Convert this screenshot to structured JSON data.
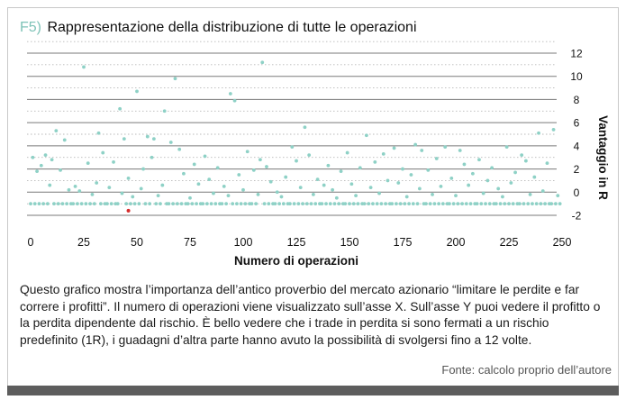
{
  "figure": {
    "label": "F5)",
    "title": "Rappresentazione della distribuzione di tutte le operazioni",
    "caption": "Questo grafico mostra l’importanza dell’antico proverbio del mercato azionario “limitare le perdite e far correre i profitti”. Il numero di operazioni viene visualizzato sull’asse X. Sull’asse Y puoi vedere il profitto o la perdita dipendente dal rischio. È bello vedere che i trade in perdita si sono fermati a un rischio predefinito (1R), i guadagni d’altra parte hanno avuto la possibilità di svolgersi fino a 12 volte.",
    "source": "Fonte: calcolo proprio dell’autore"
  },
  "colors": {
    "points": "#8ed1c6",
    "highlight": "#d62b2b",
    "grid": "#7a7a7a",
    "label": "#7fc3b8"
  },
  "chart_data": {
    "type": "scatter",
    "title": "Rappresentazione della distribuzione di tutte le operazioni",
    "xlabel": "Numero di operazioni",
    "ylabel": "Vantaggio in R",
    "xlim": [
      0,
      250
    ],
    "ylim": [
      -2,
      12
    ],
    "x_ticks": [
      "0",
      "25",
      "50",
      "75",
      "100",
      "125",
      "150",
      "175",
      "200",
      "225",
      "250"
    ],
    "y_ticks": [
      "-2",
      "0",
      "2",
      "4",
      "6",
      "8",
      "10",
      "12"
    ],
    "grid": "horizontal",
    "highlight_points": [
      {
        "x": 46,
        "y": -1.6
      }
    ],
    "points": [
      {
        "x": 0,
        "y": -1
      },
      {
        "x": 1,
        "y": 3
      },
      {
        "x": 2,
        "y": -1
      },
      {
        "x": 3,
        "y": 1.8
      },
      {
        "x": 4,
        "y": -1
      },
      {
        "x": 5,
        "y": 2.3
      },
      {
        "x": 6,
        "y": -1
      },
      {
        "x": 7,
        "y": 3.2
      },
      {
        "x": 8,
        "y": -1
      },
      {
        "x": 9,
        "y": 0.6
      },
      {
        "x": 10,
        "y": 2.8
      },
      {
        "x": 11,
        "y": -1
      },
      {
        "x": 12,
        "y": 5.3
      },
      {
        "x": 13,
        "y": -1
      },
      {
        "x": 14,
        "y": 1.9
      },
      {
        "x": 15,
        "y": -1
      },
      {
        "x": 16,
        "y": 4.5
      },
      {
        "x": 17,
        "y": -1
      },
      {
        "x": 18,
        "y": 0.2
      },
      {
        "x": 19,
        "y": -1
      },
      {
        "x": 20,
        "y": -1
      },
      {
        "x": 21,
        "y": 0.5
      },
      {
        "x": 22,
        "y": -1
      },
      {
        "x": 23,
        "y": 0.1
      },
      {
        "x": 24,
        "y": -1
      },
      {
        "x": 25,
        "y": 10.8
      },
      {
        "x": 26,
        "y": -1
      },
      {
        "x": 27,
        "y": 2.5
      },
      {
        "x": 28,
        "y": -1
      },
      {
        "x": 29,
        "y": -0.2
      },
      {
        "x": 30,
        "y": -1
      },
      {
        "x": 31,
        "y": 0.8
      },
      {
        "x": 32,
        "y": 5.1
      },
      {
        "x": 33,
        "y": -1
      },
      {
        "x": 34,
        "y": 3.4
      },
      {
        "x": 35,
        "y": -1
      },
      {
        "x": 36,
        "y": -1
      },
      {
        "x": 37,
        "y": 0.4
      },
      {
        "x": 38,
        "y": -1
      },
      {
        "x": 39,
        "y": 2.6
      },
      {
        "x": 40,
        "y": -1
      },
      {
        "x": 41,
        "y": -1
      },
      {
        "x": 42,
        "y": 7.2
      },
      {
        "x": 43,
        "y": -0.1
      },
      {
        "x": 44,
        "y": 4.6
      },
      {
        "x": 45,
        "y": -1
      },
      {
        "x": 46,
        "y": 1.2
      },
      {
        "x": 47,
        "y": -1
      },
      {
        "x": 48,
        "y": -0.4
      },
      {
        "x": 49,
        "y": -1
      },
      {
        "x": 50,
        "y": 8.7
      },
      {
        "x": 51,
        "y": -1
      },
      {
        "x": 52,
        "y": 0.3
      },
      {
        "x": 53,
        "y": 2
      },
      {
        "x": 54,
        "y": -1
      },
      {
        "x": 55,
        "y": 4.8
      },
      {
        "x": 56,
        "y": -1
      },
      {
        "x": 57,
        "y": 3
      },
      {
        "x": 58,
        "y": 4.6
      },
      {
        "x": 59,
        "y": -1
      },
      {
        "x": 60,
        "y": -0.3
      },
      {
        "x": 61,
        "y": -1
      },
      {
        "x": 62,
        "y": 0.6
      },
      {
        "x": 63,
        "y": 7
      },
      {
        "x": 64,
        "y": -1
      },
      {
        "x": 65,
        "y": -1
      },
      {
        "x": 66,
        "y": 4.3
      },
      {
        "x": 67,
        "y": -1
      },
      {
        "x": 68,
        "y": 9.8
      },
      {
        "x": 69,
        "y": -1
      },
      {
        "x": 70,
        "y": 3.7
      },
      {
        "x": 71,
        "y": -1
      },
      {
        "x": 72,
        "y": 1.6
      },
      {
        "x": 73,
        "y": -1
      },
      {
        "x": 74,
        "y": -1
      },
      {
        "x": 75,
        "y": -0.5
      },
      {
        "x": 76,
        "y": -1
      },
      {
        "x": 77,
        "y": 2.4
      },
      {
        "x": 78,
        "y": -1
      },
      {
        "x": 79,
        "y": 0.7
      },
      {
        "x": 80,
        "y": -1
      },
      {
        "x": 81,
        "y": -1
      },
      {
        "x": 82,
        "y": 3.1
      },
      {
        "x": 83,
        "y": -1
      },
      {
        "x": 84,
        "y": 1.1
      },
      {
        "x": 85,
        "y": -1
      },
      {
        "x": 86,
        "y": -0.1
      },
      {
        "x": 87,
        "y": -1
      },
      {
        "x": 88,
        "y": 2.1
      },
      {
        "x": 89,
        "y": -1
      },
      {
        "x": 90,
        "y": -1
      },
      {
        "x": 91,
        "y": 0.5
      },
      {
        "x": 92,
        "y": -1
      },
      {
        "x": 93,
        "y": -0.3
      },
      {
        "x": 94,
        "y": 8.5
      },
      {
        "x": 95,
        "y": -1
      },
      {
        "x": 96,
        "y": 7.9
      },
      {
        "x": 97,
        "y": -1
      },
      {
        "x": 98,
        "y": 1.5
      },
      {
        "x": 99,
        "y": -1
      },
      {
        "x": 100,
        "y": 0.2
      },
      {
        "x": 101,
        "y": -1
      },
      {
        "x": 102,
        "y": 3.5
      },
      {
        "x": 103,
        "y": -1
      },
      {
        "x": 104,
        "y": -1
      },
      {
        "x": 105,
        "y": 1.9
      },
      {
        "x": 106,
        "y": -1
      },
      {
        "x": 107,
        "y": -0.2
      },
      {
        "x": 108,
        "y": 2.8
      },
      {
        "x": 109,
        "y": 11.2
      },
      {
        "x": 110,
        "y": -1
      },
      {
        "x": 111,
        "y": 2.2
      },
      {
        "x": 112,
        "y": -1
      },
      {
        "x": 113,
        "y": 0.9
      },
      {
        "x": 114,
        "y": -1
      },
      {
        "x": 115,
        "y": -1
      },
      {
        "x": 116,
        "y": 0
      },
      {
        "x": 117,
        "y": -1
      },
      {
        "x": 118,
        "y": -0.4
      },
      {
        "x": 119,
        "y": -1
      },
      {
        "x": 120,
        "y": 1.3
      },
      {
        "x": 121,
        "y": -1
      },
      {
        "x": 122,
        "y": -1
      },
      {
        "x": 123,
        "y": 3.9
      },
      {
        "x": 124,
        "y": -1
      },
      {
        "x": 125,
        "y": 2.7
      },
      {
        "x": 126,
        "y": -1
      },
      {
        "x": 127,
        "y": 0.4
      },
      {
        "x": 128,
        "y": -1
      },
      {
        "x": 129,
        "y": 5.6
      },
      {
        "x": 130,
        "y": -1
      },
      {
        "x": 131,
        "y": 3.2
      },
      {
        "x": 132,
        "y": -1
      },
      {
        "x": 133,
        "y": -0.2
      },
      {
        "x": 134,
        "y": -1
      },
      {
        "x": 135,
        "y": 1.1
      },
      {
        "x": 136,
        "y": -1
      },
      {
        "x": 137,
        "y": -1
      },
      {
        "x": 138,
        "y": 0.6
      },
      {
        "x": 139,
        "y": -1
      },
      {
        "x": 140,
        "y": 2.3
      },
      {
        "x": 141,
        "y": -1
      },
      {
        "x": 142,
        "y": 0.2
      },
      {
        "x": 143,
        "y": -1
      },
      {
        "x": 144,
        "y": -0.5
      },
      {
        "x": 145,
        "y": -1
      },
      {
        "x": 146,
        "y": 1.8
      },
      {
        "x": 147,
        "y": -1
      },
      {
        "x": 148,
        "y": -1
      },
      {
        "x": 149,
        "y": 3.4
      },
      {
        "x": 150,
        "y": -1
      },
      {
        "x": 151,
        "y": 0.7
      },
      {
        "x": 152,
        "y": -1
      },
      {
        "x": 153,
        "y": -0.3
      },
      {
        "x": 154,
        "y": -1
      },
      {
        "x": 155,
        "y": 2.1
      },
      {
        "x": 156,
        "y": -1
      },
      {
        "x": 157,
        "y": -1
      },
      {
        "x": 158,
        "y": 4.9
      },
      {
        "x": 159,
        "y": -1
      },
      {
        "x": 160,
        "y": 0.4
      },
      {
        "x": 161,
        "y": -1
      },
      {
        "x": 162,
        "y": 2.6
      },
      {
        "x": 163,
        "y": -1
      },
      {
        "x": 164,
        "y": -0.1
      },
      {
        "x": 165,
        "y": -1
      },
      {
        "x": 166,
        "y": 3.3
      },
      {
        "x": 167,
        "y": -1
      },
      {
        "x": 168,
        "y": 1
      },
      {
        "x": 169,
        "y": -1
      },
      {
        "x": 170,
        "y": -1
      },
      {
        "x": 171,
        "y": 3.8
      },
      {
        "x": 172,
        "y": -1
      },
      {
        "x": 173,
        "y": 0.8
      },
      {
        "x": 174,
        "y": -1
      },
      {
        "x": 175,
        "y": 2
      },
      {
        "x": 176,
        "y": -1
      },
      {
        "x": 177,
        "y": -0.4
      },
      {
        "x": 178,
        "y": -1
      },
      {
        "x": 179,
        "y": 1.5
      },
      {
        "x": 180,
        "y": -1
      },
      {
        "x": 181,
        "y": 4.1
      },
      {
        "x": 182,
        "y": -1
      },
      {
        "x": 183,
        "y": 0.3
      },
      {
        "x": 184,
        "y": 3.6
      },
      {
        "x": 185,
        "y": -1
      },
      {
        "x": 186,
        "y": -1
      },
      {
        "x": 187,
        "y": 1.9
      },
      {
        "x": 188,
        "y": -1
      },
      {
        "x": 189,
        "y": -0.2
      },
      {
        "x": 190,
        "y": -1
      },
      {
        "x": 191,
        "y": 2.9
      },
      {
        "x": 192,
        "y": -1
      },
      {
        "x": 193,
        "y": 0.5
      },
      {
        "x": 194,
        "y": -1
      },
      {
        "x": 195,
        "y": 3.9
      },
      {
        "x": 196,
        "y": -1
      },
      {
        "x": 197,
        "y": -1
      },
      {
        "x": 198,
        "y": 1.2
      },
      {
        "x": 199,
        "y": -1
      },
      {
        "x": 200,
        "y": -0.3
      },
      {
        "x": 201,
        "y": -1
      },
      {
        "x": 202,
        "y": 3.6
      },
      {
        "x": 203,
        "y": -1
      },
      {
        "x": 204,
        "y": 2.4
      },
      {
        "x": 205,
        "y": -1
      },
      {
        "x": 206,
        "y": 0.6
      },
      {
        "x": 207,
        "y": -1
      },
      {
        "x": 208,
        "y": 1.6
      },
      {
        "x": 209,
        "y": -1
      },
      {
        "x": 210,
        "y": -1
      },
      {
        "x": 211,
        "y": 2.8
      },
      {
        "x": 212,
        "y": -1
      },
      {
        "x": 213,
        "y": -0.1
      },
      {
        "x": 214,
        "y": -1
      },
      {
        "x": 215,
        "y": 1
      },
      {
        "x": 216,
        "y": -1
      },
      {
        "x": 217,
        "y": 2.1
      },
      {
        "x": 218,
        "y": -1
      },
      {
        "x": 219,
        "y": -1
      },
      {
        "x": 220,
        "y": 0.3
      },
      {
        "x": 221,
        "y": -1
      },
      {
        "x": 222,
        "y": -0.4
      },
      {
        "x": 223,
        "y": -1
      },
      {
        "x": 224,
        "y": 3.9
      },
      {
        "x": 225,
        "y": -1
      },
      {
        "x": 226,
        "y": 0.8
      },
      {
        "x": 227,
        "y": -1
      },
      {
        "x": 228,
        "y": 1.7
      },
      {
        "x": 229,
        "y": -1
      },
      {
        "x": 230,
        "y": -1
      },
      {
        "x": 231,
        "y": 3.2
      },
      {
        "x": 232,
        "y": -1
      },
      {
        "x": 233,
        "y": 2.7
      },
      {
        "x": 234,
        "y": -1
      },
      {
        "x": 235,
        "y": -0.2
      },
      {
        "x": 236,
        "y": -1
      },
      {
        "x": 237,
        "y": 1.3
      },
      {
        "x": 238,
        "y": -1
      },
      {
        "x": 239,
        "y": 5.1
      },
      {
        "x": 240,
        "y": -1
      },
      {
        "x": 241,
        "y": 0.1
      },
      {
        "x": 242,
        "y": -1
      },
      {
        "x": 243,
        "y": 2.5
      },
      {
        "x": 244,
        "y": -1
      },
      {
        "x": 245,
        "y": -1
      },
      {
        "x": 246,
        "y": 5.4
      },
      {
        "x": 247,
        "y": -1
      },
      {
        "x": 248,
        "y": -0.3
      },
      {
        "x": 249,
        "y": -1
      }
    ]
  }
}
